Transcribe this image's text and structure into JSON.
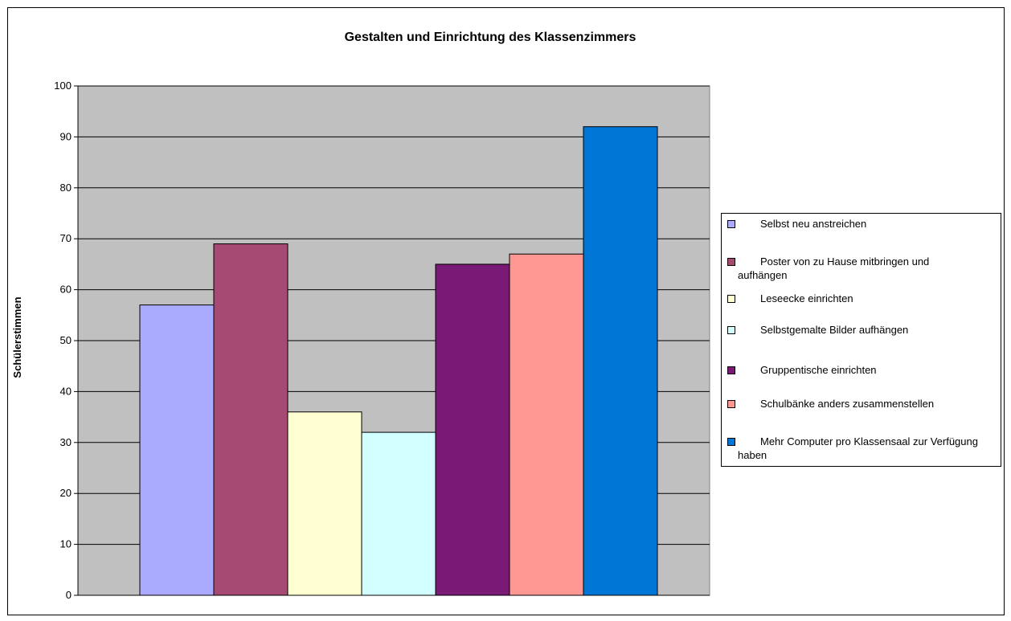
{
  "chart_data": {
    "type": "bar",
    "title": "Gestalten und Einrichtung des Klassenzimmers",
    "xlabel": "",
    "ylabel": "Schülerstimmen",
    "ylim": [
      0,
      100
    ],
    "yticks": [
      0,
      10,
      20,
      30,
      40,
      50,
      60,
      70,
      80,
      90,
      100
    ],
    "grid": true,
    "legend_position": "right",
    "series": [
      {
        "name": "Selbst neu anstreichen",
        "values": [
          57
        ],
        "color": "#AAAAFF"
      },
      {
        "name": "Poster von zu Hause mitbringen und aufhängen",
        "values": [
          69
        ],
        "color": "#A64A74"
      },
      {
        "name": "Leseecke einrichten",
        "values": [
          36
        ],
        "color": "#FFFFD2"
      },
      {
        "name": "Selbstgemalte Bilder aufhängen",
        "values": [
          32
        ],
        "color": "#D2FFFF"
      },
      {
        "name": "Gruppentische einrichten",
        "values": [
          65
        ],
        "color": "#7A1A77"
      },
      {
        "name": "Schulbänke anders zusammenstellen",
        "values": [
          67
        ],
        "color": "#FF9893"
      },
      {
        "name": "Mehr Computer pro Klassensaal zur Verfügung haben",
        "values": [
          92
        ],
        "color": "#0077D6"
      }
    ],
    "plot_background": "#C0C0C0"
  }
}
